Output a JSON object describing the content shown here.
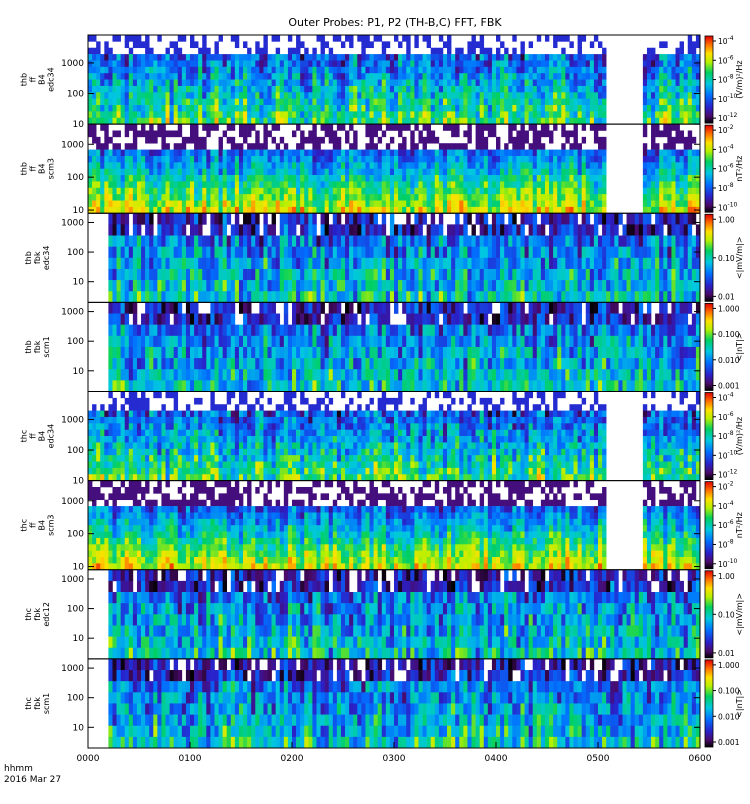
{
  "title": "Outer Probes: P1, P2 (TH-B,C) FFT, FBK",
  "footer": {
    "time_label": "hhmm",
    "date_label": "2016 Mar 27"
  },
  "chart_data": {
    "type": "heatmap",
    "x_ticks": [
      "0000",
      "0100",
      "0200",
      "0300",
      "0400",
      "0500",
      "0600"
    ],
    "x_range_hours": [
      0,
      6
    ],
    "panels": [
      {
        "id": "thb-ff-b4-edc34",
        "ylabel_lines": [
          "thb",
          "ff",
          "B4",
          "edc34"
        ],
        "y_ticks": [
          "10",
          "100",
          "1000"
        ],
        "y_range": [
          10,
          8192
        ],
        "y_scale": "log",
        "colorbar_label": "(V/m)²/Hz",
        "colorbar_ticks": [
          {
            "base": "10",
            "exp": "-4"
          },
          {
            "base": "10",
            "exp": "-6"
          },
          {
            "base": "10",
            "exp": "-8"
          },
          {
            "base": "10",
            "exp": "-10"
          },
          {
            "base": "10",
            "exp": "-12"
          }
        ],
        "data_gaps_hours": [
          [
            5.1,
            5.45
          ]
        ]
      },
      {
        "id": "thb-ff-b4-scm3",
        "ylabel_lines": [
          "thb",
          "ff",
          "B4",
          "scm3"
        ],
        "y_ticks": [
          "10",
          "100",
          "1000"
        ],
        "y_range": [
          8,
          4096
        ],
        "y_scale": "log",
        "colorbar_label": "nT²/Hz",
        "colorbar_ticks": [
          {
            "base": "10",
            "exp": "-2"
          },
          {
            "base": "10",
            "exp": "-4"
          },
          {
            "base": "10",
            "exp": "-6"
          },
          {
            "base": "10",
            "exp": "-8"
          },
          {
            "base": "10",
            "exp": "-10"
          }
        ],
        "data_gaps_hours": [
          [
            5.1,
            5.45
          ]
        ]
      },
      {
        "id": "thb-fbk-edc34",
        "ylabel_lines": [
          "thb",
          "fbk",
          "edc34"
        ],
        "y_ticks": [
          "10",
          "100",
          "1000"
        ],
        "y_range": [
          2,
          2048
        ],
        "y_scale": "log",
        "colorbar_label": "<|mV/m|>",
        "colorbar_ticks": [
          {
            "base": "1.00"
          },
          {
            "base": "0.10"
          },
          {
            "base": "0.01"
          }
        ],
        "data_gaps_hours": [
          [
            0.0,
            0.18
          ]
        ]
      },
      {
        "id": "thb-fbk-scm1",
        "ylabel_lines": [
          "thb",
          "fbk",
          "scm1"
        ],
        "y_ticks": [
          "10",
          "100",
          "1000"
        ],
        "y_range": [
          2,
          2048
        ],
        "y_scale": "log",
        "colorbar_label": "<|nT|>",
        "colorbar_ticks": [
          {
            "base": "1.000"
          },
          {
            "base": "0.100"
          },
          {
            "base": "0.010"
          },
          {
            "base": "0.001"
          }
        ],
        "data_gaps_hours": [
          [
            0.0,
            0.18
          ]
        ]
      },
      {
        "id": "thc-ff-b4-edc34",
        "ylabel_lines": [
          "thc",
          "ff",
          "B4",
          "edc34"
        ],
        "y_ticks": [
          "10",
          "100",
          "1000"
        ],
        "y_range": [
          10,
          8192
        ],
        "y_scale": "log",
        "colorbar_label": "(V/m)²/Hz",
        "colorbar_ticks": [
          {
            "base": "10",
            "exp": "-4"
          },
          {
            "base": "10",
            "exp": "-6"
          },
          {
            "base": "10",
            "exp": "-8"
          },
          {
            "base": "10",
            "exp": "-10"
          },
          {
            "base": "10",
            "exp": "-12"
          }
        ],
        "data_gaps_hours": [
          [
            5.1,
            5.45
          ]
        ]
      },
      {
        "id": "thc-ff-b4-scm3",
        "ylabel_lines": [
          "thc",
          "ff",
          "B4",
          "scm3"
        ],
        "y_ticks": [
          "10",
          "100",
          "1000"
        ],
        "y_range": [
          8,
          4096
        ],
        "y_scale": "log",
        "colorbar_label": "nT²/Hz",
        "colorbar_ticks": [
          {
            "base": "10",
            "exp": "-2"
          },
          {
            "base": "10",
            "exp": "-4"
          },
          {
            "base": "10",
            "exp": "-6"
          },
          {
            "base": "10",
            "exp": "-8"
          },
          {
            "base": "10",
            "exp": "-10"
          }
        ],
        "data_gaps_hours": [
          [
            5.1,
            5.45
          ]
        ]
      },
      {
        "id": "thc-fbk-edc12",
        "ylabel_lines": [
          "thc",
          "fbk",
          "edc12"
        ],
        "y_ticks": [
          "10",
          "100",
          "1000"
        ],
        "y_range": [
          2,
          2048
        ],
        "y_scale": "log",
        "colorbar_label": "<|mV/m|>",
        "colorbar_ticks": [
          {
            "base": "1.00"
          },
          {
            "base": "0.10"
          },
          {
            "base": "0.01"
          }
        ],
        "data_gaps_hours": [
          [
            0.0,
            0.18
          ]
        ]
      },
      {
        "id": "thc-fbk-scm1",
        "ylabel_lines": [
          "thc",
          "fbk",
          "scm1"
        ],
        "y_ticks": [
          "10",
          "100",
          "1000"
        ],
        "y_range": [
          2,
          2048
        ],
        "y_scale": "log",
        "colorbar_label": "<|nT|>",
        "colorbar_ticks": [
          {
            "base": "1.000"
          },
          {
            "base": "0.100"
          },
          {
            "base": "0.010"
          },
          {
            "base": "0.001"
          }
        ],
        "data_gaps_hours": [
          [
            0.0,
            0.18
          ]
        ]
      }
    ]
  }
}
